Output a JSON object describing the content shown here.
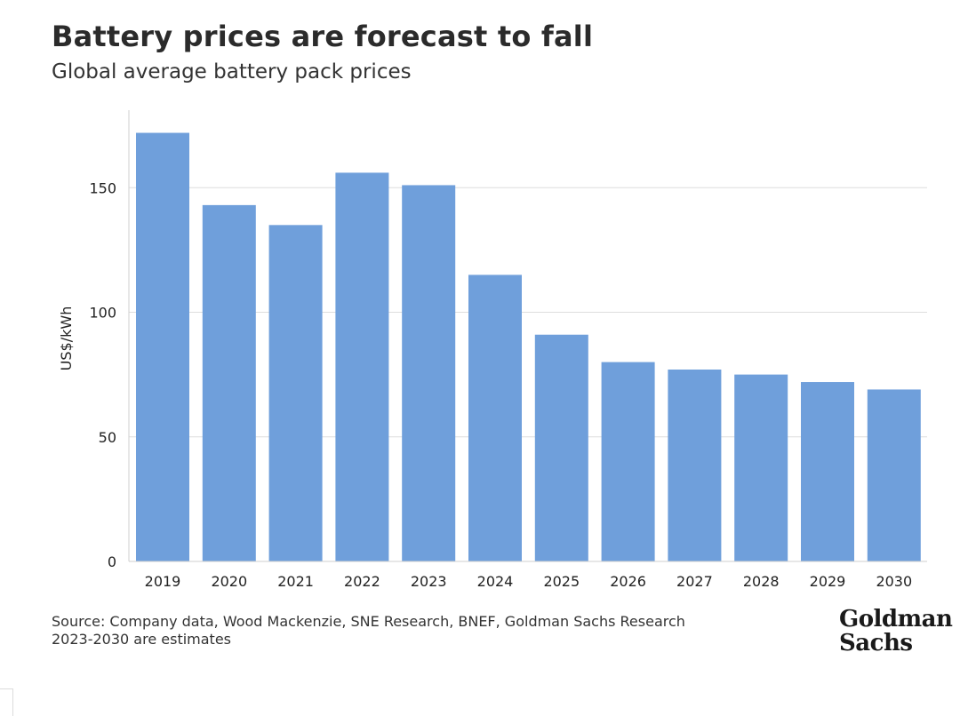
{
  "chart_data": {
    "type": "bar",
    "title": "Battery prices are forecast to fall",
    "subtitle": "Global average battery pack prices",
    "ylabel": "US$/kWh",
    "xlabel": "",
    "categories": [
      "2019",
      "2020",
      "2021",
      "2022",
      "2023",
      "2024",
      "2025",
      "2026",
      "2027",
      "2028",
      "2029",
      "2030"
    ],
    "values": [
      172,
      143,
      135,
      156,
      151,
      115,
      91,
      80,
      77,
      75,
      72,
      69
    ],
    "ylim": [
      0,
      175
    ],
    "yticks": [
      0,
      50,
      100,
      150
    ],
    "grid": true,
    "bar_color": "#6f9fdb"
  },
  "footer": {
    "source": "Source: Company data, Wood Mackenzie, SNE Research, BNEF, Goldman Sachs Research",
    "note": "2023-2030 are estimates"
  },
  "logo": {
    "line1": "Goldman",
    "line2": "Sachs"
  }
}
